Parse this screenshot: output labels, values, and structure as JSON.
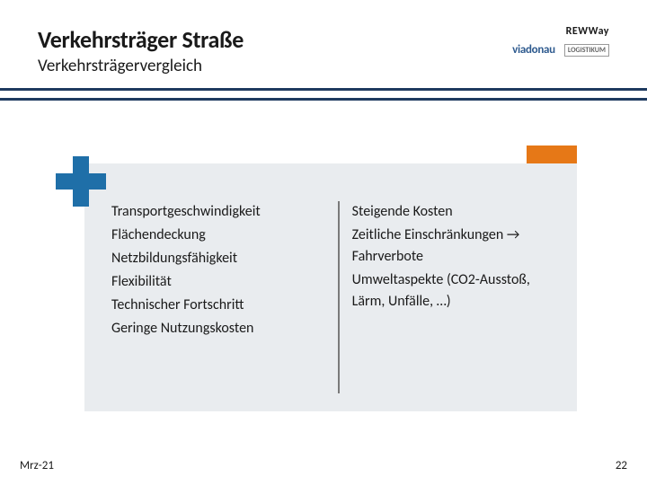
{
  "header": {
    "title": "Verkehrsträger Straße",
    "subtitle": "Verkehrsträgervergleich"
  },
  "logos": {
    "rewway": "REWWay",
    "viadonau": "viadonau",
    "logistikum": "LOGISTIKUM"
  },
  "columns": {
    "left": [
      "Transportgeschwindigkeit",
      "Flächendeckung",
      "Netzbildungsfähigkeit",
      "Flexibilität",
      "Technischer Fortschritt",
      "Geringe Nutzungskosten"
    ],
    "right": [
      "Steigende Kosten",
      "Zeitliche Einschränkungen → Fahrverbote",
      "Umweltaspekte (CO2-Ausstoß, Lärm, Unfälle, …)"
    ]
  },
  "footer": {
    "date": "Mrz-21",
    "page": "22"
  },
  "colors": {
    "band": "#1e3a5f",
    "accent": "#e67817",
    "plus": "#1f6fa8",
    "box_bg": "#e9ecef",
    "divider": "#7a7a7a",
    "text": "#1a1a1a",
    "viadonau": "#2f5b8f"
  }
}
